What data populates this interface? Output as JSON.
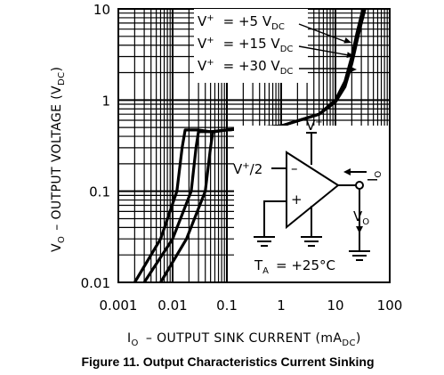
{
  "chart_data": {
    "type": "line",
    "title": "",
    "caption": "Figure 11. Output Characteristics Current Sinking",
    "x_axis": {
      "label_main": "I",
      "label_sub": "O",
      "label_rest": "– OUTPUT SINK CURRENT (mA",
      "label_unit_sub": "DC",
      "label_close": ")",
      "scale": "log",
      "range": [
        0.001,
        100
      ],
      "ticks": [
        "0.001",
        "0.01",
        "0.1",
        "1",
        "10",
        "100"
      ]
    },
    "y_axis": {
      "label_main": "V",
      "label_sub": "O",
      "label_rest": "– OUTPUT VOLTAGE (V",
      "label_unit_sub": "DC",
      "label_close": ")",
      "scale": "log",
      "range": [
        0.01,
        10
      ],
      "ticks": [
        "0.01",
        "0.1",
        "1",
        "10"
      ]
    },
    "grid": true,
    "legend_position": "top-center",
    "series": [
      {
        "name": "V+ = +5 VDC",
        "label_prefix": "V",
        "label_sup": "+",
        "label_eq": "= +5 V",
        "label_sub": "DC",
        "points": [
          [
            0.002,
            0.01
          ],
          [
            0.006,
            0.03
          ],
          [
            0.012,
            0.1
          ],
          [
            0.015,
            0.3
          ],
          [
            0.017,
            0.47
          ],
          [
            0.03,
            0.47
          ],
          [
            0.05,
            0.45
          ],
          [
            0.1,
            0.47
          ],
          [
            1,
            0.52
          ],
          [
            5,
            0.7
          ],
          [
            10,
            0.95
          ],
          [
            15,
            1.4
          ],
          [
            20,
            2.5
          ],
          [
            25,
            4.5
          ],
          [
            30,
            7
          ],
          [
            35,
            10
          ]
        ]
      },
      {
        "name": "V+ = +15 VDC",
        "label_prefix": "V",
        "label_sup": "+",
        "label_eq": "= +15 V",
        "label_sub": "DC",
        "points": [
          [
            0.003,
            0.01
          ],
          [
            0.01,
            0.03
          ],
          [
            0.022,
            0.1
          ],
          [
            0.027,
            0.3
          ],
          [
            0.03,
            0.45
          ],
          [
            0.06,
            0.45
          ],
          [
            0.1,
            0.47
          ],
          [
            1,
            0.52
          ],
          [
            5,
            0.7
          ],
          [
            10,
            0.97
          ],
          [
            15,
            1.5
          ],
          [
            20,
            2.8
          ],
          [
            25,
            5
          ],
          [
            30,
            8
          ],
          [
            33,
            10
          ]
        ]
      },
      {
        "name": "V+ = +30 VDC",
        "label_prefix": "V",
        "label_sup": "+",
        "label_eq": "= +30 V",
        "label_sub": "DC",
        "points": [
          [
            0.006,
            0.01
          ],
          [
            0.018,
            0.03
          ],
          [
            0.04,
            0.1
          ],
          [
            0.05,
            0.3
          ],
          [
            0.055,
            0.45
          ],
          [
            0.1,
            0.47
          ],
          [
            1,
            0.52
          ],
          [
            5,
            0.7
          ],
          [
            10,
            1.0
          ],
          [
            15,
            1.6
          ],
          [
            20,
            3
          ],
          [
            25,
            5.5
          ],
          [
            30,
            8.5
          ],
          [
            32,
            10
          ]
        ]
      }
    ]
  },
  "schematic": {
    "vplus": "V",
    "vplus_sup": "+",
    "vhalf": "V",
    "vhalf_sup": "+",
    "vhalf_rest": "/2",
    "minus": "–",
    "plus": "+",
    "io": "I",
    "io_sub": "O",
    "vo": "V",
    "vo_sub": "O",
    "ta": "T",
    "ta_sub": "A",
    "ta_val": "= +25°C"
  }
}
